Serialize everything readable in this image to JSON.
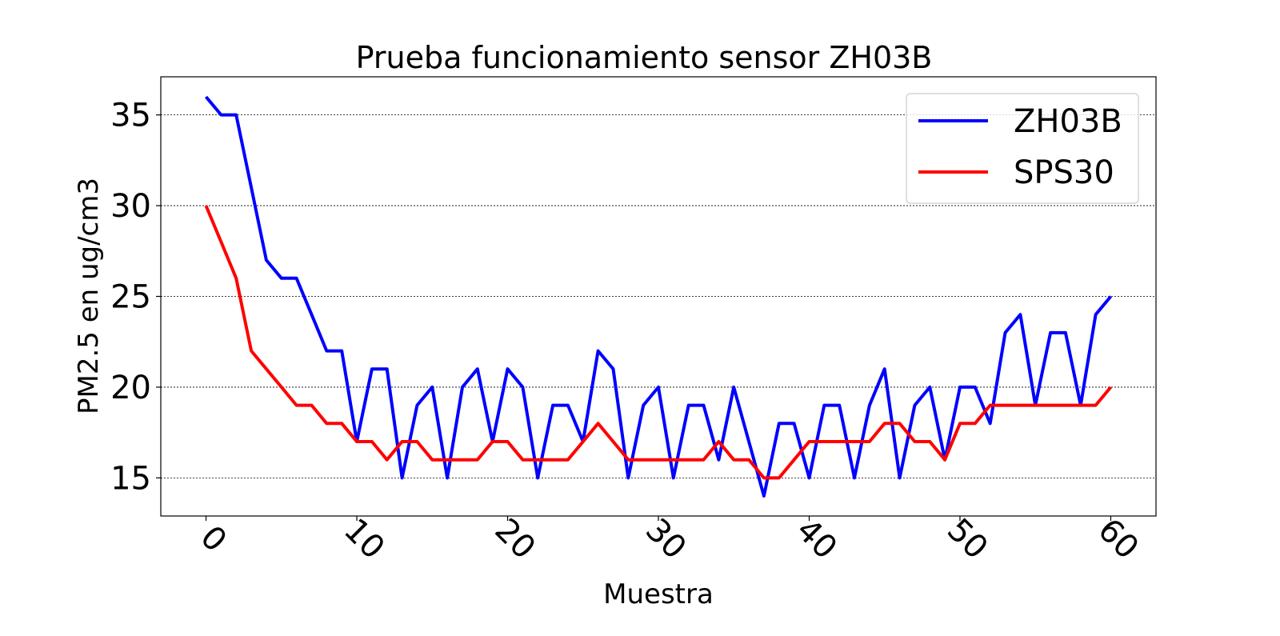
{
  "chart_data": {
    "type": "line",
    "title": "Prueba funcionamiento sensor ZH03B",
    "xlabel": "Muestra",
    "ylabel": "PM2.5 en ug/cm3",
    "xlim": [
      -3,
      63
    ],
    "ylim": [
      12.9,
      37.1
    ],
    "xticks": [
      0,
      10,
      20,
      30,
      40,
      50,
      60
    ],
    "yticks": [
      15,
      20,
      25,
      30,
      35
    ],
    "grid": "horizontal-dotted",
    "legend_position": "top-right",
    "x": [
      0,
      1,
      2,
      3,
      4,
      5,
      6,
      7,
      8,
      9,
      10,
      11,
      12,
      13,
      14,
      15,
      16,
      17,
      18,
      19,
      20,
      21,
      22,
      23,
      24,
      25,
      26,
      27,
      28,
      29,
      30,
      31,
      32,
      33,
      34,
      35,
      36,
      37,
      38,
      39,
      40,
      41,
      42,
      43,
      44,
      45,
      46,
      47,
      48,
      49,
      50,
      51,
      52,
      53,
      54,
      55,
      56,
      57,
      58,
      59,
      60
    ],
    "series": [
      {
        "name": "ZH03B",
        "color": "#0000ff",
        "values": [
          36,
          35,
          35,
          31,
          27,
          26,
          26,
          24,
          22,
          22,
          17,
          21,
          21,
          15,
          19,
          20,
          15,
          20,
          21,
          17,
          21,
          20,
          15,
          19,
          19,
          17,
          22,
          21,
          15,
          19,
          20,
          15,
          19,
          19,
          16,
          20,
          17,
          14,
          18,
          18,
          15,
          19,
          19,
          15,
          19,
          21,
          15,
          19,
          20,
          16,
          20,
          20,
          18,
          23,
          24,
          19,
          23,
          23,
          19,
          24,
          25
        ]
      },
      {
        "name": "SPS30",
        "color": "#ff0000",
        "values": [
          30,
          28,
          26,
          22,
          21,
          20,
          19,
          19,
          18,
          18,
          17,
          17,
          16,
          17,
          17,
          16,
          16,
          16,
          16,
          17,
          17,
          16,
          16,
          16,
          16,
          17,
          18,
          17,
          16,
          16,
          16,
          16,
          16,
          16,
          17,
          16,
          16,
          15,
          15,
          16,
          17,
          17,
          17,
          17,
          17,
          18,
          18,
          17,
          17,
          16,
          18,
          18,
          19,
          19,
          19,
          19,
          19,
          19,
          19,
          19,
          20
        ]
      }
    ]
  }
}
